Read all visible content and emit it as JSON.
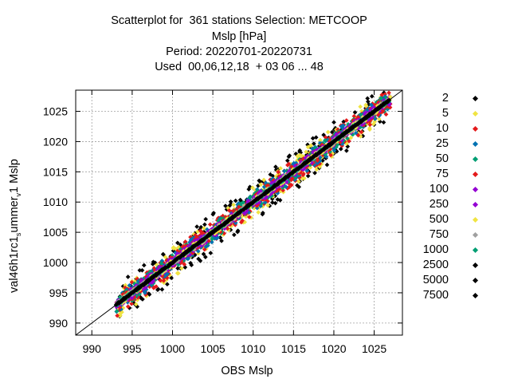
{
  "title_lines": [
    "Scatterplot for  361 stations Selection: METCOOP",
    "Mslp [hPa]",
    "Period: 20220701-20220731",
    "Used  00,06,12,18  + 03 06 ... 48"
  ],
  "chart_data": {
    "type": "scatter",
    "title": "Scatterplot for  361 stations Selection: METCOOP",
    "xlabel": "OBS Mslp",
    "ylabel": {
      "main": "val46h1rc1",
      "sub": "s",
      "mid": "ummer",
      "sub2": "v",
      "end": "1 Mslp"
    },
    "xlim": [
      988,
      1028.5
    ],
    "ylim": [
      988,
      1028.5
    ],
    "xticks": [
      990,
      995,
      1000,
      1005,
      1010,
      1015,
      1020,
      1025
    ],
    "yticks": [
      990,
      995,
      1000,
      1005,
      1010,
      1015,
      1020,
      1025
    ],
    "grid": true,
    "legend_position": "right",
    "series": [
      {
        "name": "2",
        "color": "#000000",
        "halfwidth": 3.2
      },
      {
        "name": "5",
        "color": "#f0e442",
        "halfwidth": 2.5
      },
      {
        "name": "10",
        "color": "#e41a1c",
        "halfwidth": 2.0
      },
      {
        "name": "25",
        "color": "#0072b2",
        "halfwidth": 1.6
      },
      {
        "name": "50",
        "color": "#009e73",
        "halfwidth": 1.3
      },
      {
        "name": "75",
        "color": "#e41a1c",
        "halfwidth": 1.1
      },
      {
        "name": "100",
        "color": "#9400d3",
        "halfwidth": 0.9
      },
      {
        "name": "250",
        "color": "#9400d3",
        "halfwidth": 0.7
      },
      {
        "name": "500",
        "color": "#f0e442",
        "halfwidth": 0.5
      },
      {
        "name": "750",
        "color": "#a0a0a0",
        "halfwidth": 0.35
      },
      {
        "name": "1000",
        "color": "#009e73",
        "halfwidth": 0.25
      },
      {
        "name": "2500",
        "color": "#000000",
        "halfwidth": 0.15
      },
      {
        "name": "5000",
        "color": "#000000",
        "halfwidth": 0.1
      },
      {
        "name": "7500",
        "color": "#000000",
        "halfwidth": 0.05
      }
    ],
    "data_range": [
      993,
      1027
    ]
  }
}
